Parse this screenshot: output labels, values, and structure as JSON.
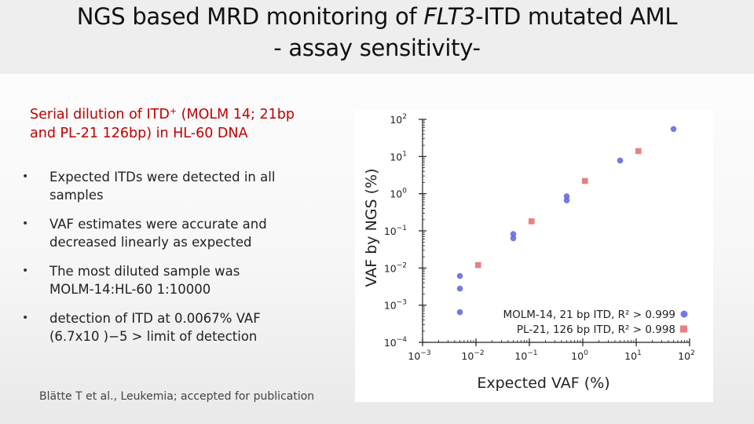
{
  "title": {
    "line1_pre": "NGS based MRD monitoring of ",
    "line1_gene": "FLT3",
    "line1_post": "-ITD mutated AML",
    "line2": "- assay sensitivity-"
  },
  "subtitle": {
    "line1_pre": "Serial dilution of ITD",
    "line1_sup": "+",
    "line1_post": " (MOLM 14; 21bp",
    "line2": "and PL-21 126bp) in HL-60 DNA"
  },
  "bullets": [
    {
      "line1": "Expected ITDs were detected in all",
      "line2": "samples"
    },
    {
      "line1": "VAF estimates were accurate and",
      "line2": "decreased linearly as expected"
    },
    {
      "line1": "The most diluted sample was",
      "line2": "MOLM-14:HL-60 1:10000"
    },
    {
      "line1": "detection of ITD at 0.0067% VAF",
      "line2": "(6.7x10 )−5  > limit of detection"
    }
  ],
  "bullet_symbol": "•",
  "citation": "Blätte T et al., Leukemia; accepted for publication",
  "colors": {
    "title_band": "#eeeeee",
    "subtitle": "#c00000",
    "molm14": "#5b63e0",
    "pl21": "#e06c6c",
    "axis": "#222222"
  },
  "chart_data": {
    "type": "scatter",
    "xscale": "log",
    "yscale": "log",
    "xlabel": "Expected VAF (%)",
    "ylabel": "VAF by NGS (%)",
    "xlim": [
      0.001,
      100
    ],
    "ylim": [
      0.0001,
      100
    ],
    "xticks": [
      {
        "base": "10",
        "exp": "−3"
      },
      {
        "base": "10",
        "exp": "−2"
      },
      {
        "base": "10",
        "exp": "−1"
      },
      {
        "base": "10",
        "exp": "0"
      },
      {
        "base": "10",
        "exp": "1"
      },
      {
        "base": "10",
        "exp": "2"
      }
    ],
    "yticks": [
      {
        "base": "10",
        "exp": "2"
      },
      {
        "base": "10",
        "exp": "1"
      },
      {
        "base": "10",
        "exp": "0"
      },
      {
        "base": "10",
        "exp": "−1"
      },
      {
        "base": "10",
        "exp": "−2"
      },
      {
        "base": "10",
        "exp": "−3"
      },
      {
        "base": "10",
        "exp": "−4"
      }
    ],
    "legend_position": "bottom-right",
    "series": [
      {
        "name": "MOLM-14, 21 bp ITD, R² > 0.999",
        "marker": "circle",
        "points": [
          {
            "x": 0.005,
            "y": 0.0061
          },
          {
            "x": 0.005,
            "y": 0.0028
          },
          {
            "x": 0.005,
            "y": 0.00065
          },
          {
            "x": 0.05,
            "y": 0.082
          },
          {
            "x": 0.05,
            "y": 0.063
          },
          {
            "x": 0.5,
            "y": 0.85
          },
          {
            "x": 0.5,
            "y": 0.66
          },
          {
            "x": 5,
            "y": 7.8
          },
          {
            "x": 50,
            "y": 55
          }
        ]
      },
      {
        "name": "PL-21, 126 bp ITD, R² > 0.998",
        "marker": "square",
        "points": [
          {
            "x": 0.011,
            "y": 0.012
          },
          {
            "x": 0.11,
            "y": 0.18
          },
          {
            "x": 1.1,
            "y": 2.2
          },
          {
            "x": 11,
            "y": 14
          }
        ]
      }
    ]
  }
}
